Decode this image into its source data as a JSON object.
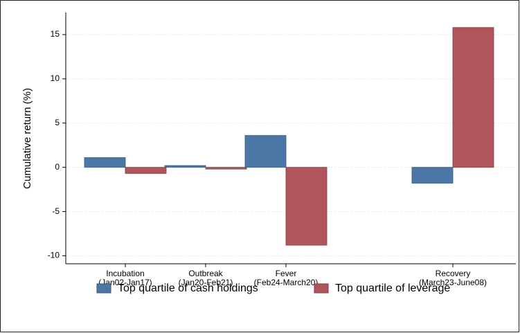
{
  "chart_data": {
    "type": "bar",
    "y_label": "Cumulative return (%)",
    "categories": [
      [
        "Incubation",
        "(Jan02-Jan17)"
      ],
      [
        "Outbreak",
        "(Jan20-Feb21)"
      ],
      [
        "Fever",
        "(Feb24-March20)"
      ],
      [
        "Recovery",
        "(March23-June08)"
      ]
    ],
    "series": [
      {
        "name": "Top quartile of cash holdings",
        "color": "#4a77a6",
        "values": [
          1.1,
          0.2,
          3.6,
          -1.8
        ]
      },
      {
        "name": "Top quartile of leverage",
        "color": "#b0565b",
        "values": [
          -0.7,
          -0.2,
          -8.8,
          15.8
        ]
      }
    ],
    "ylim": [
      -10.9,
      17.5
    ],
    "yticks": [
      -10,
      -5,
      0,
      5,
      10,
      15
    ],
    "grid": true
  }
}
